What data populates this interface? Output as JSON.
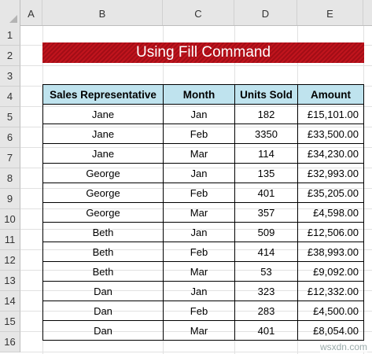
{
  "columns": [
    "A",
    "B",
    "C",
    "D",
    "E"
  ],
  "rows": [
    "1",
    "2",
    "3",
    "4",
    "5",
    "6",
    "7",
    "8",
    "9",
    "10",
    "11",
    "12",
    "13",
    "14",
    "15",
    "16"
  ],
  "title": "Using Fill Command",
  "table": {
    "headers": [
      "Sales Representative",
      "Month",
      "Units Sold",
      "Amount"
    ],
    "rows": [
      [
        "Jane",
        "Jan",
        "182",
        "£15,101.00"
      ],
      [
        "Jane",
        "Feb",
        "3350",
        "£33,500.00"
      ],
      [
        "Jane",
        "Mar",
        "114",
        "£34,230.00"
      ],
      [
        "George",
        "Jan",
        "135",
        "£32,993.00"
      ],
      [
        "George",
        "Feb",
        "401",
        "£35,205.00"
      ],
      [
        "George",
        "Mar",
        "357",
        "£4,598.00"
      ],
      [
        "Beth",
        "Jan",
        "509",
        "£12,506.00"
      ],
      [
        "Beth",
        "Feb",
        "414",
        "£38,993.00"
      ],
      [
        "Beth",
        "Mar",
        "53",
        "£9,092.00"
      ],
      [
        "Dan",
        "Jan",
        "323",
        "£12,332.00"
      ],
      [
        "Dan",
        "Feb",
        "283",
        "£4,500.00"
      ],
      [
        "Dan",
        "Mar",
        "401",
        "£8,054.00"
      ]
    ]
  },
  "watermark": "wsxdn.com"
}
